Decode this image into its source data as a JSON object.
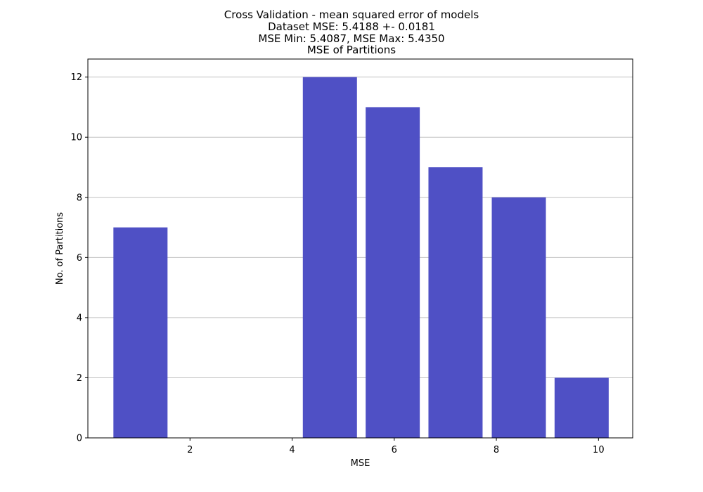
{
  "chart_data": {
    "type": "bar",
    "title_lines": [
      "Cross Validation - mean squared error of models",
      "Dataset MSE: 5.4188 +- 0.0181",
      "MSE Min: 5.4087, MSE Max: 5.4350",
      "MSE of Partitions"
    ],
    "xlabel": "MSE",
    "ylabel": "No. of Partitions",
    "bars": [
      {
        "x": 1.03,
        "width": 1.06,
        "value": 7
      },
      {
        "x": 2.27,
        "width": 1.06,
        "value": 0
      },
      {
        "x": 3.5,
        "width": 1.06,
        "value": 0
      },
      {
        "x": 4.74,
        "width": 1.06,
        "value": 12
      },
      {
        "x": 5.97,
        "width": 1.06,
        "value": 11
      },
      {
        "x": 7.2,
        "width": 1.06,
        "value": 9
      },
      {
        "x": 8.44,
        "width": 1.06,
        "value": 8
      },
      {
        "x": 9.67,
        "width": 1.06,
        "value": 2
      }
    ],
    "xlim": [
      0.0,
      10.67
    ],
    "ylim": [
      0,
      12.6
    ],
    "xticks": [
      2,
      4,
      6,
      8,
      10
    ],
    "yticks": [
      0,
      2,
      4,
      6,
      8,
      10,
      12
    ],
    "grid": "y",
    "bar_color": "#4f50c5",
    "grid_color": "#c0c0c0"
  }
}
